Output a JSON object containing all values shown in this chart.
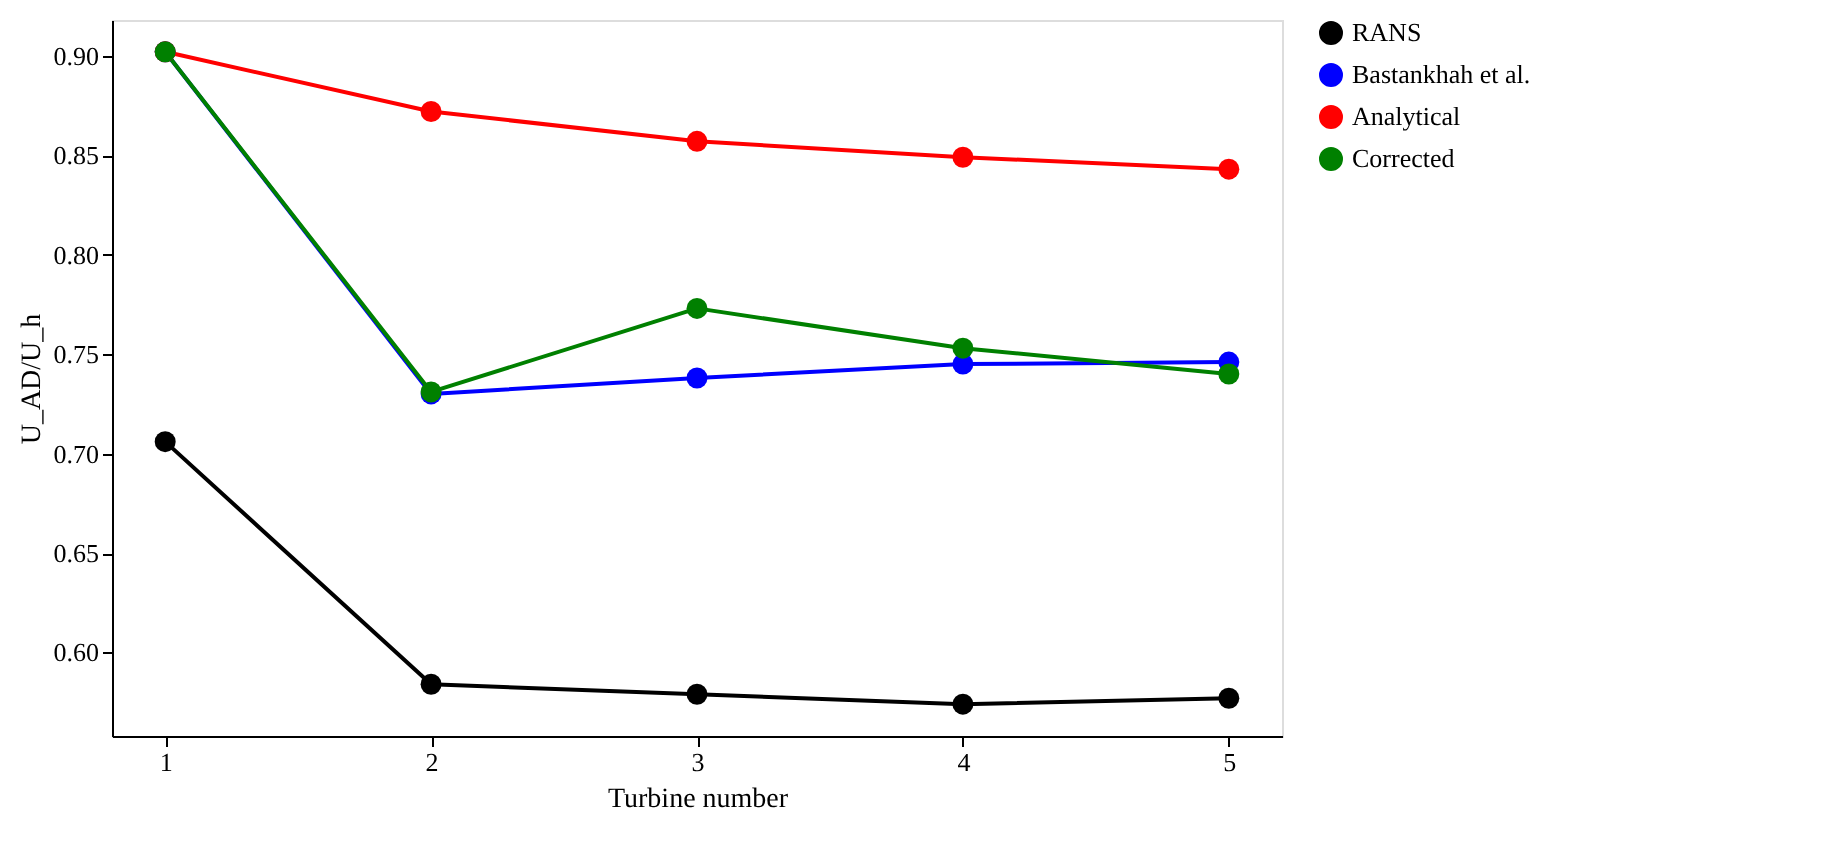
{
  "chart_data": {
    "type": "line",
    "xlabel": "Turbine number",
    "ylabel": "U_AD/U_h",
    "x": [
      1,
      2,
      3,
      4,
      5
    ],
    "series": [
      {
        "name": "RANS",
        "color": "#000000",
        "values": [
          0.706,
          0.584,
          0.579,
          0.574,
          0.577
        ]
      },
      {
        "name": "Bastankhah et al.",
        "color": "#0000ff",
        "values": [
          0.902,
          0.73,
          0.738,
          0.745,
          0.746
        ]
      },
      {
        "name": "Analytical",
        "color": "#ff0000",
        "values": [
          0.902,
          0.872,
          0.857,
          0.849,
          0.843
        ]
      },
      {
        "name": "Corrected",
        "color": "#008000",
        "values": [
          0.902,
          0.731,
          0.773,
          0.753,
          0.74
        ]
      }
    ],
    "xlim": [
      0.8,
      5.2
    ],
    "xticks": [
      1,
      2,
      3,
      4,
      5
    ],
    "ylim": [
      0.558,
      0.918
    ],
    "yticks": [
      {
        "value": 0.6,
        "label": "0.60"
      },
      0.65,
      {
        "value": 0.7,
        "label": "0.70"
      },
      0.75,
      {
        "value": 0.8,
        "label": "0.80"
      },
      0.85,
      {
        "value": 0.9,
        "label": "0.90"
      }
    ],
    "grid": false,
    "legend": "right",
    "marker": "circle",
    "line_style": "solid"
  }
}
